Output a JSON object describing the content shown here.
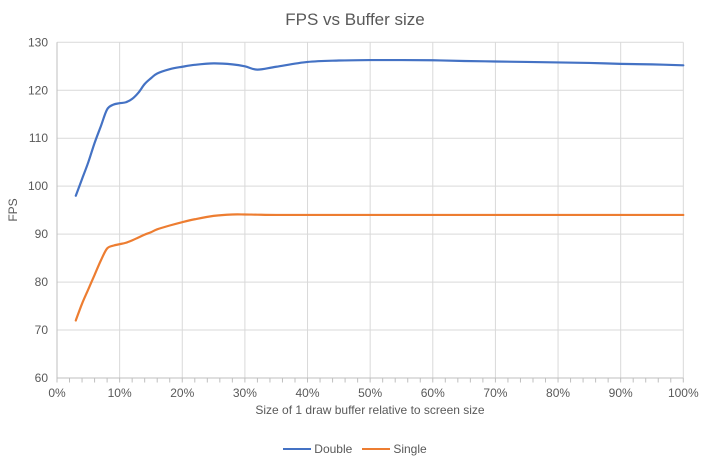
{
  "chart_data": {
    "type": "line",
    "title": "FPS vs Buffer size",
    "xlabel": "Size of 1 draw buffer relative to screen size",
    "ylabel": "FPS",
    "xlim": [
      0,
      100
    ],
    "ylim": [
      60,
      130
    ],
    "x_tick_values": [
      0,
      10,
      20,
      30,
      40,
      50,
      60,
      70,
      80,
      90,
      100
    ],
    "x_tick_labels": [
      "0%",
      "10%",
      "20%",
      "30%",
      "40%",
      "50%",
      "60%",
      "70%",
      "80%",
      "90%",
      "100%"
    ],
    "y_tick_values": [
      60,
      70,
      80,
      90,
      100,
      110,
      120,
      130
    ],
    "x_minor_tick_step": 2,
    "grid": true,
    "line_smoothing": true,
    "legend_position": "bottom",
    "colors": {
      "gridline": "#D9D9D9",
      "axis": "#BFBFBF",
      "text": "#595959",
      "background": "#FFFFFF"
    },
    "series": [
      {
        "name": "Double",
        "color": "#4472C4",
        "x": [
          3,
          4,
          5,
          6,
          7,
          8,
          9,
          10,
          11,
          12,
          13,
          14,
          15,
          16,
          18,
          20,
          22,
          25,
          28,
          30,
          32,
          35,
          40,
          45,
          50,
          55,
          60,
          65,
          70,
          75,
          80,
          85,
          90,
          95,
          100
        ],
        "y": [
          98,
          101.5,
          105,
          109,
          112.5,
          116,
          117,
          117.3,
          117.5,
          118.2,
          119.5,
          121.3,
          122.5,
          123.5,
          124.4,
          124.9,
          125.3,
          125.6,
          125.4,
          125,
          124.3,
          124.9,
          125.9,
          126.2,
          126.3,
          126.3,
          126.25,
          126.1,
          126,
          125.9,
          125.8,
          125.7,
          125.5,
          125.4,
          125.2
        ]
      },
      {
        "name": "Single",
        "color": "#ED7D31",
        "x": [
          3,
          4,
          5,
          6,
          7,
          8,
          9,
          10,
          11,
          12,
          13,
          14,
          15,
          16,
          18,
          20,
          22,
          25,
          28,
          30,
          32,
          35,
          40,
          45,
          50,
          55,
          60,
          65,
          70,
          75,
          80,
          85,
          90,
          95,
          100
        ],
        "y": [
          72,
          75.5,
          78.5,
          81.5,
          84.5,
          87,
          87.6,
          87.9,
          88.2,
          88.7,
          89.3,
          89.9,
          90.4,
          91,
          91.8,
          92.5,
          93.1,
          93.8,
          94.1,
          94.1,
          94.05,
          94,
          94,
          94,
          94,
          94,
          94,
          94,
          94,
          94,
          94,
          94,
          94,
          94,
          94
        ]
      }
    ]
  }
}
